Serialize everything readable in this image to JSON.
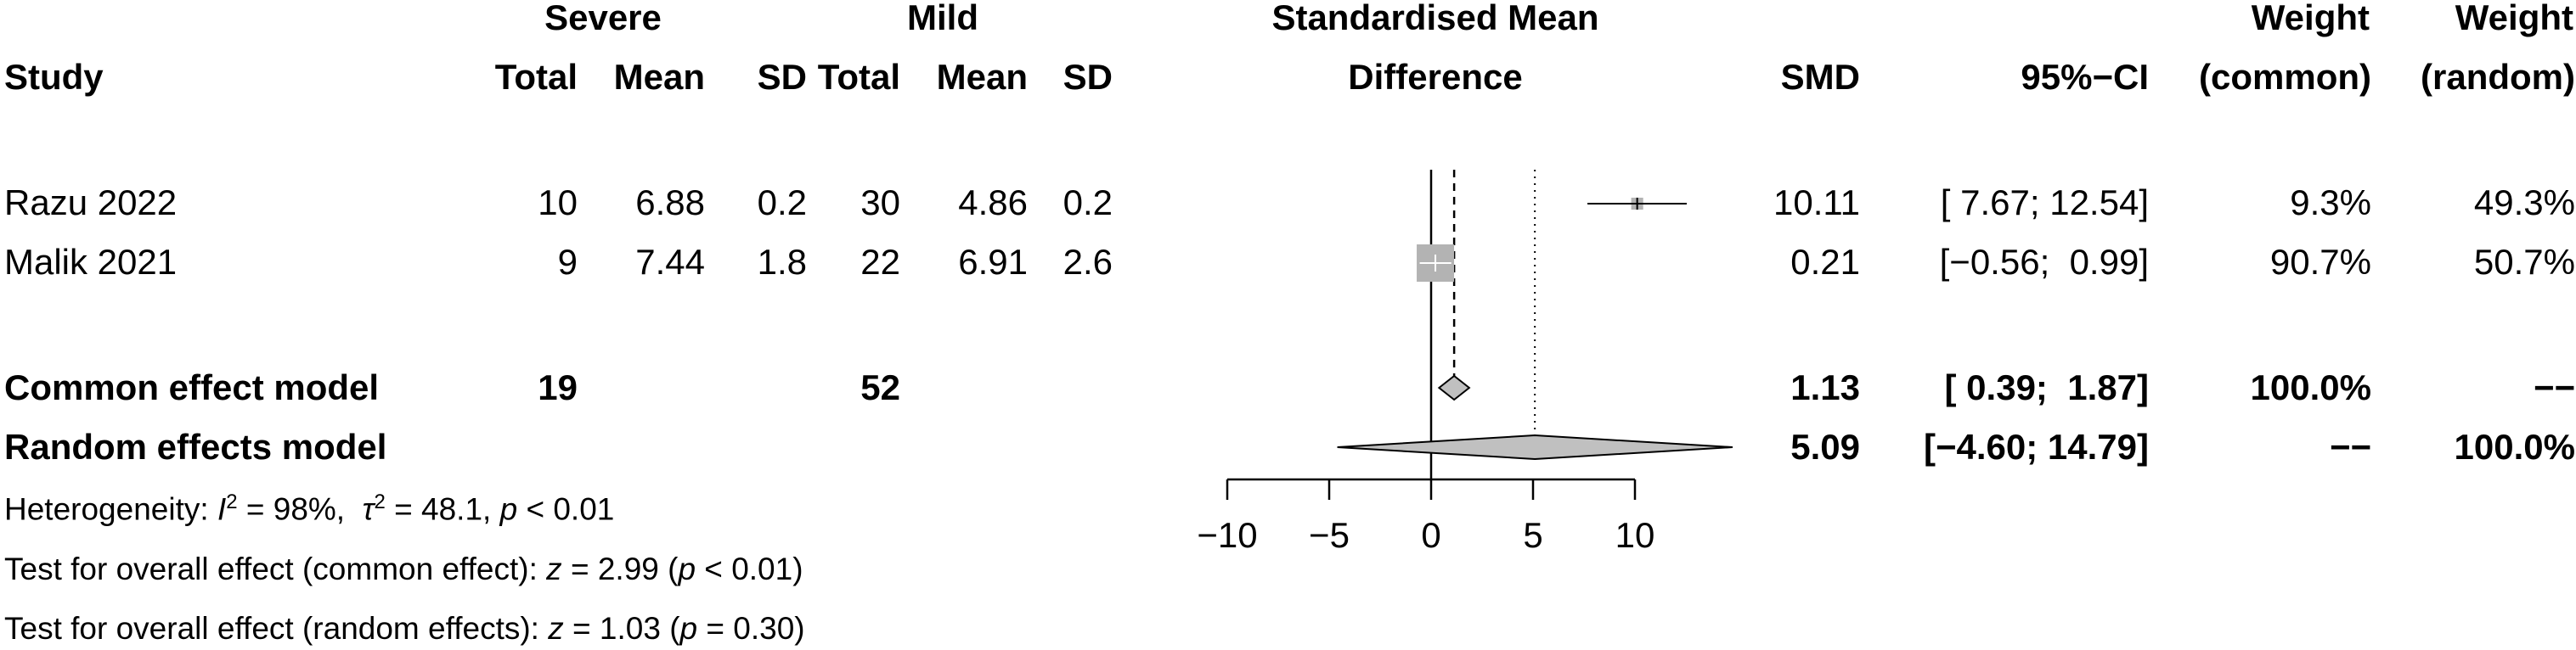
{
  "header": {
    "group1": "Severe",
    "group2": "Mild",
    "plot_title1": "Standardised Mean",
    "plot_title2": "Difference",
    "weight1": "Weight",
    "weight2": "Weight",
    "study": "Study",
    "total1": "Total",
    "mean1": "Mean",
    "sd1": "SD",
    "total2": "Total",
    "mean2": "Mean",
    "sd2": "SD",
    "smd": "SMD",
    "ci": "95%−CI",
    "common": "(common)",
    "random": "(random)"
  },
  "studies": [
    {
      "name": "Razu 2022",
      "n1": "10",
      "m1": "6.88",
      "sd1": "0.2",
      "n2": "30",
      "m2": "4.86",
      "sd2": "0.2",
      "smd": "10.11",
      "ci": "[ 7.67; 12.54]",
      "w_common": "9.3%",
      "w_random": "49.3%"
    },
    {
      "name": "Malik 2021",
      "n1": "9",
      "m1": "7.44",
      "sd1": "1.8",
      "n2": "22",
      "m2": "6.91",
      "sd2": "2.6",
      "smd": "0.21",
      "ci": "[−0.56;  0.99]",
      "w_common": "90.7%",
      "w_random": "50.7%"
    }
  ],
  "common_model": {
    "label": "Common effect model",
    "n1": "19",
    "n2": "52",
    "smd": "1.13",
    "ci": "[ 0.39;  1.87]",
    "w_common": "100.0%",
    "w_random": "−−"
  },
  "random_model": {
    "label": "Random effects model",
    "smd": "5.09",
    "ci": "[−4.60; 14.79]",
    "w_common": "−−",
    "w_random": "100.0%"
  },
  "footer": {
    "het_prefix": "Heterogeneity: ",
    "i2_label": "I",
    "i2_sup": "2",
    "i2_value": " = 98%,  ",
    "tau_label": "τ",
    "tau_sup": "2",
    "tau_value": " = 48.1, ",
    "p_label": "p",
    "p_value": " < 0.01",
    "test_common_prefix": "Test for overall effect (common effect): ",
    "z_label": "z",
    "test_common_z": " = 2.99 (",
    "test_common_p": " < 0.01)",
    "test_random_prefix": "Test for overall effect (random effects): ",
    "test_random_z": " = 1.03 (",
    "test_random_p": " = 0.30)"
  },
  "chart_data": {
    "type": "forest",
    "title": "Standardised Mean Difference",
    "xlim": [
      -10,
      10
    ],
    "ticks": [
      -10,
      -5,
      0,
      5,
      10
    ],
    "tick_labels": [
      "−10",
      "−5",
      "0",
      "5",
      "10"
    ],
    "null_line": 0,
    "common_line": 1.13,
    "random_line": 5.09,
    "studies": [
      {
        "name": "Razu 2022",
        "est": 10.11,
        "lo": 7.67,
        "hi": 12.54,
        "weight_common": 9.3
      },
      {
        "name": "Malik 2021",
        "est": 0.21,
        "lo": -0.56,
        "hi": 0.99,
        "weight_common": 90.7
      }
    ],
    "summaries": [
      {
        "name": "Common effect model",
        "est": 1.13,
        "lo": 0.39,
        "hi": 1.87
      },
      {
        "name": "Random effects model",
        "est": 5.09,
        "lo": -4.6,
        "hi": 14.79
      }
    ],
    "colors": {
      "box": "#b3b3b3",
      "diamond": "#c0c0c0",
      "line": "#000000"
    }
  }
}
